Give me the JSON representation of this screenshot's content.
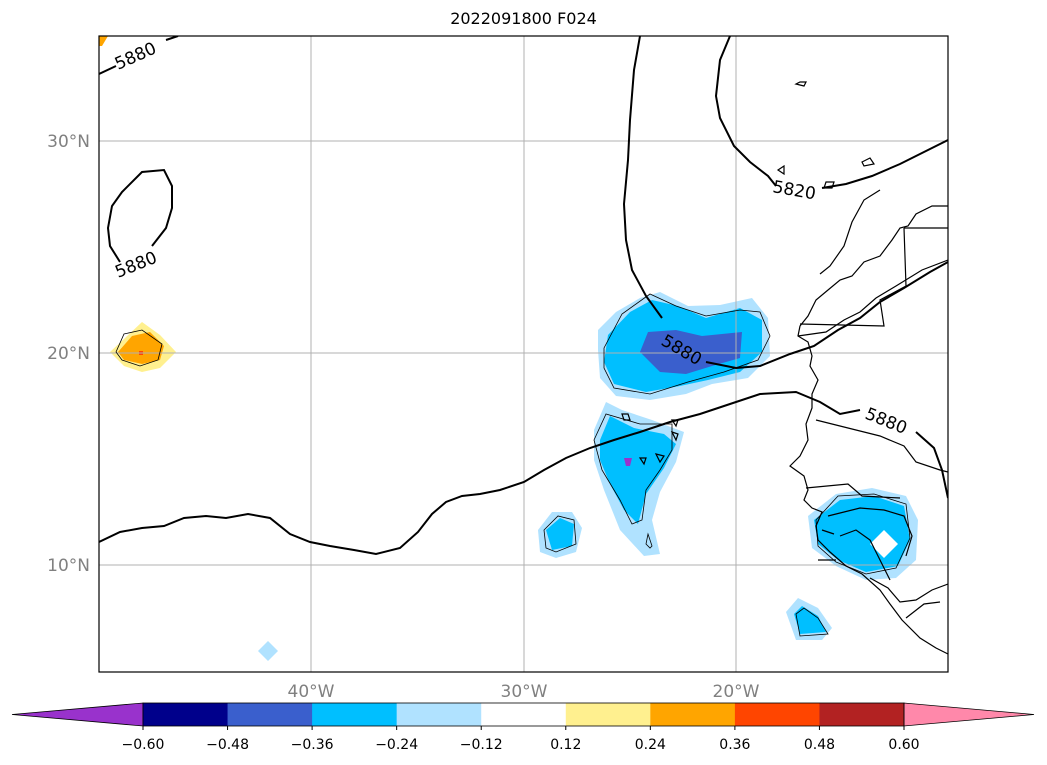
{
  "title": "2022091800 F024",
  "lat_labels": [
    "30°N",
    "20°N",
    "10°N"
  ],
  "lon_labels": [
    "40°W",
    "30°W",
    "20°W"
  ],
  "contour_labels": [
    "5880",
    "5880",
    "5880",
    "5880",
    "5820"
  ],
  "colorbar": {
    "ticks": [
      "−0.60",
      "−0.48",
      "−0.36",
      "−0.24",
      "−0.12",
      "0.12",
      "0.24",
      "0.36",
      "0.48",
      "0.60"
    ],
    "colors": [
      "#9932cc",
      "#00008b",
      "#3a5fcd",
      "#00bfff",
      "#b0e2ff",
      "#ffffff",
      "#fff08f",
      "#ffa500",
      "#ff4500",
      "#b22222",
      "#ff88aa"
    ]
  },
  "colors": {
    "fill_light_blue": "#b0e2ff",
    "fill_cyan": "#00bfff",
    "fill_royal": "#3a5fcd",
    "fill_purple": "#9932cc",
    "fill_yellow": "#fff08f",
    "fill_orange": "#ffa500",
    "fill_red": "#ff4500",
    "grid": "#b0b0b0"
  }
}
